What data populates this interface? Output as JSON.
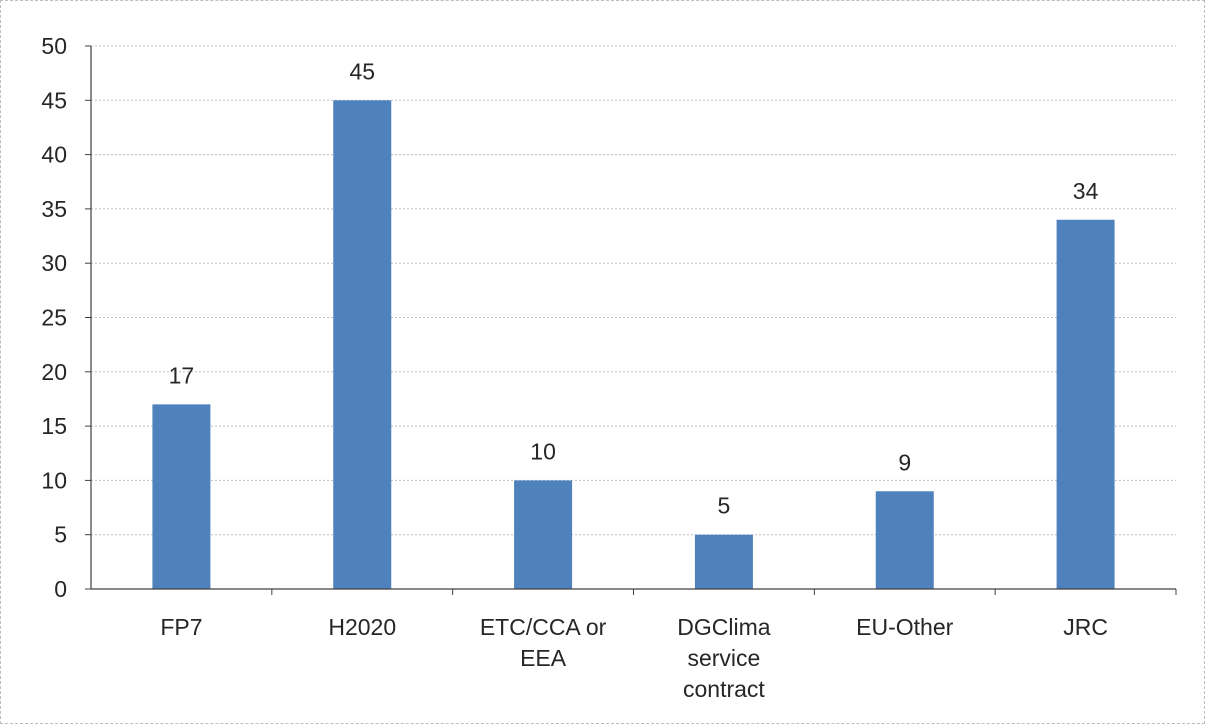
{
  "chart_data": {
    "type": "bar",
    "title": "",
    "xlabel": "",
    "ylabel": "",
    "categories": [
      [
        "FP7"
      ],
      [
        "H2020"
      ],
      [
        "ETC/CCA or",
        "EEA"
      ],
      [
        "DGClima",
        "service",
        "contract"
      ],
      [
        "EU-Other"
      ],
      [
        "JRC"
      ]
    ],
    "values": [
      17,
      45,
      10,
      5,
      9,
      34
    ],
    "data_labels": [
      "17",
      "45",
      "10",
      "5",
      "9",
      "34"
    ],
    "ylim": [
      0,
      50
    ],
    "yticks": [
      0,
      5,
      10,
      15,
      20,
      25,
      30,
      35,
      40,
      45,
      50
    ],
    "grid": "horizontal dotted",
    "legend": "none",
    "colors": {
      "bar": "#4f81bd",
      "grid": "#bfbfbf",
      "axis": "#404040",
      "text": "#262626"
    }
  }
}
